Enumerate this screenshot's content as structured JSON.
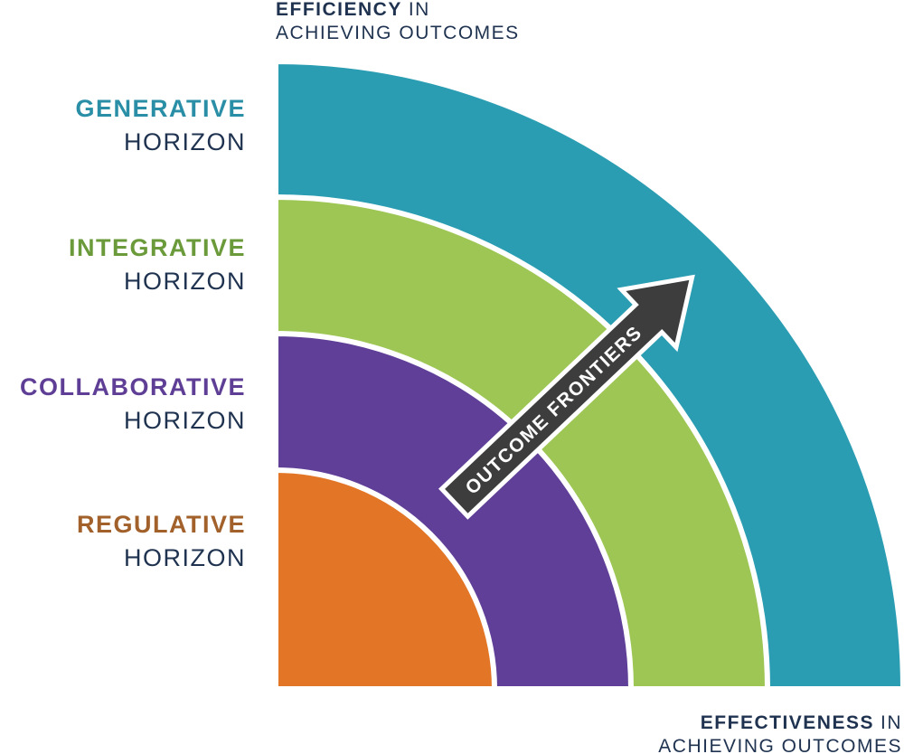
{
  "top_axis": {
    "bold": "EFFICIENCY",
    "rest": "IN",
    "line2": "ACHIEVING OUTCOMES"
  },
  "bottom_axis": {
    "bold": "EFFECTIVENESS",
    "rest": "IN",
    "line2": "ACHIEVING OUTCOMES"
  },
  "horizons": [
    {
      "name": "GENERATIVE",
      "label": "HORIZON"
    },
    {
      "name": "INTEGRATIVE",
      "label": "HORIZON"
    },
    {
      "name": "COLLABORATIVE",
      "label": "HORIZON"
    },
    {
      "name": "REGULATIVE",
      "label": "HORIZON"
    }
  ],
  "arrow_label": "OUTCOME FRONTIERS"
}
